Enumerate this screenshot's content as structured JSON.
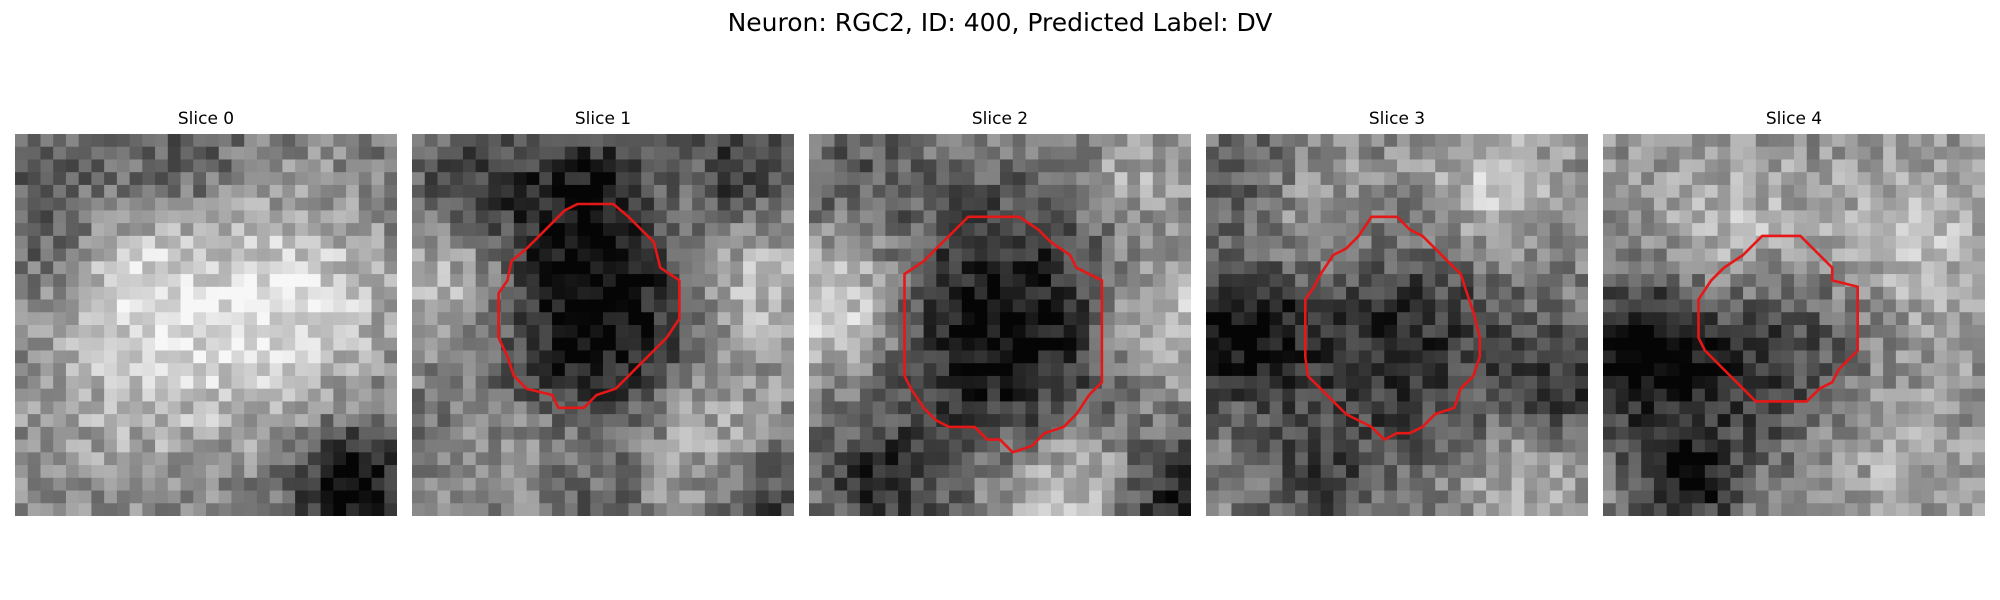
{
  "figure": {
    "title": "Neuron: RGC2, ID: 400, Predicted Label: DV",
    "neuron_type": "RGC2",
    "id": "400",
    "predicted_label": "DV"
  },
  "colors": {
    "contour": "#e61717",
    "colormap": "gray"
  },
  "panels": [
    {
      "title": "Slice 0",
      "has_contour": false
    },
    {
      "title": "Slice 1",
      "has_contour": true
    },
    {
      "title": "Slice 2",
      "has_contour": true
    },
    {
      "title": "Slice 3",
      "has_contour": true
    },
    {
      "title": "Slice 4",
      "has_contour": true
    }
  ]
}
